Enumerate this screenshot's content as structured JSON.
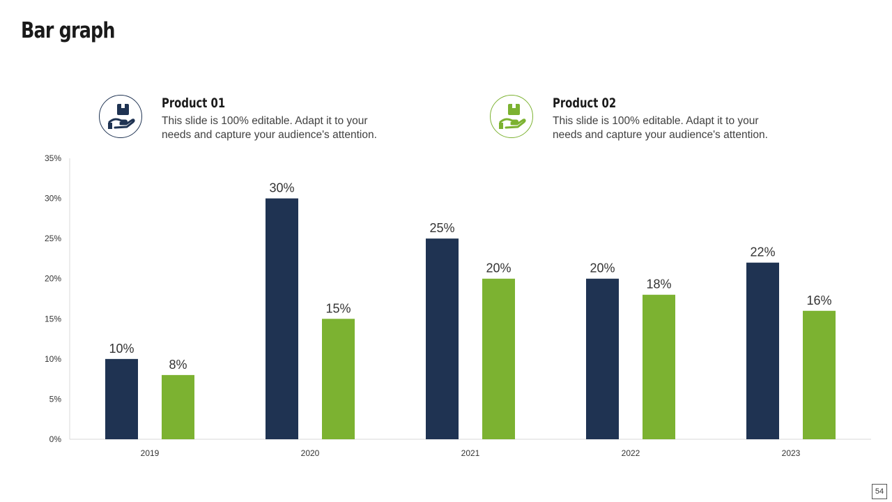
{
  "slide": {
    "title": "Bar graph",
    "page_number": "54"
  },
  "legend": [
    {
      "name": "Product 01",
      "description": "This slide is 100% editable. Adapt it to your needs and capture your audience's attention.",
      "icon": "hand-holding-box-icon",
      "color": "#1f3352"
    },
    {
      "name": "Product 02",
      "description": "This slide is 100% editable. Adapt it to your needs and capture your audience's attention.",
      "icon": "hand-holding-box-icon",
      "color": "#7cb231"
    }
  ],
  "chart_data": {
    "type": "bar",
    "title": "",
    "xlabel": "",
    "ylabel": "",
    "categories": [
      "2019",
      "2020",
      "2021",
      "2022",
      "2023"
    ],
    "series": [
      {
        "name": "Product 01",
        "values": [
          10,
          30,
          25,
          20,
          22
        ],
        "labels": [
          "10%",
          "30%",
          "25%",
          "20%",
          "22%"
        ],
        "color": "#1f3352"
      },
      {
        "name": "Product 02",
        "values": [
          8,
          15,
          20,
          18,
          16
        ],
        "labels": [
          "8%",
          "15%",
          "20%",
          "18%",
          "16%"
        ],
        "color": "#7cb231"
      }
    ],
    "ylim": [
      0,
      35
    ],
    "yticks": [
      0,
      5,
      10,
      15,
      20,
      25,
      30,
      35
    ],
    "ytick_labels": [
      "0%",
      "5%",
      "10%",
      "15%",
      "20%",
      "25%",
      "30%",
      "35%"
    ],
    "grid": false,
    "legend_position": "top"
  }
}
